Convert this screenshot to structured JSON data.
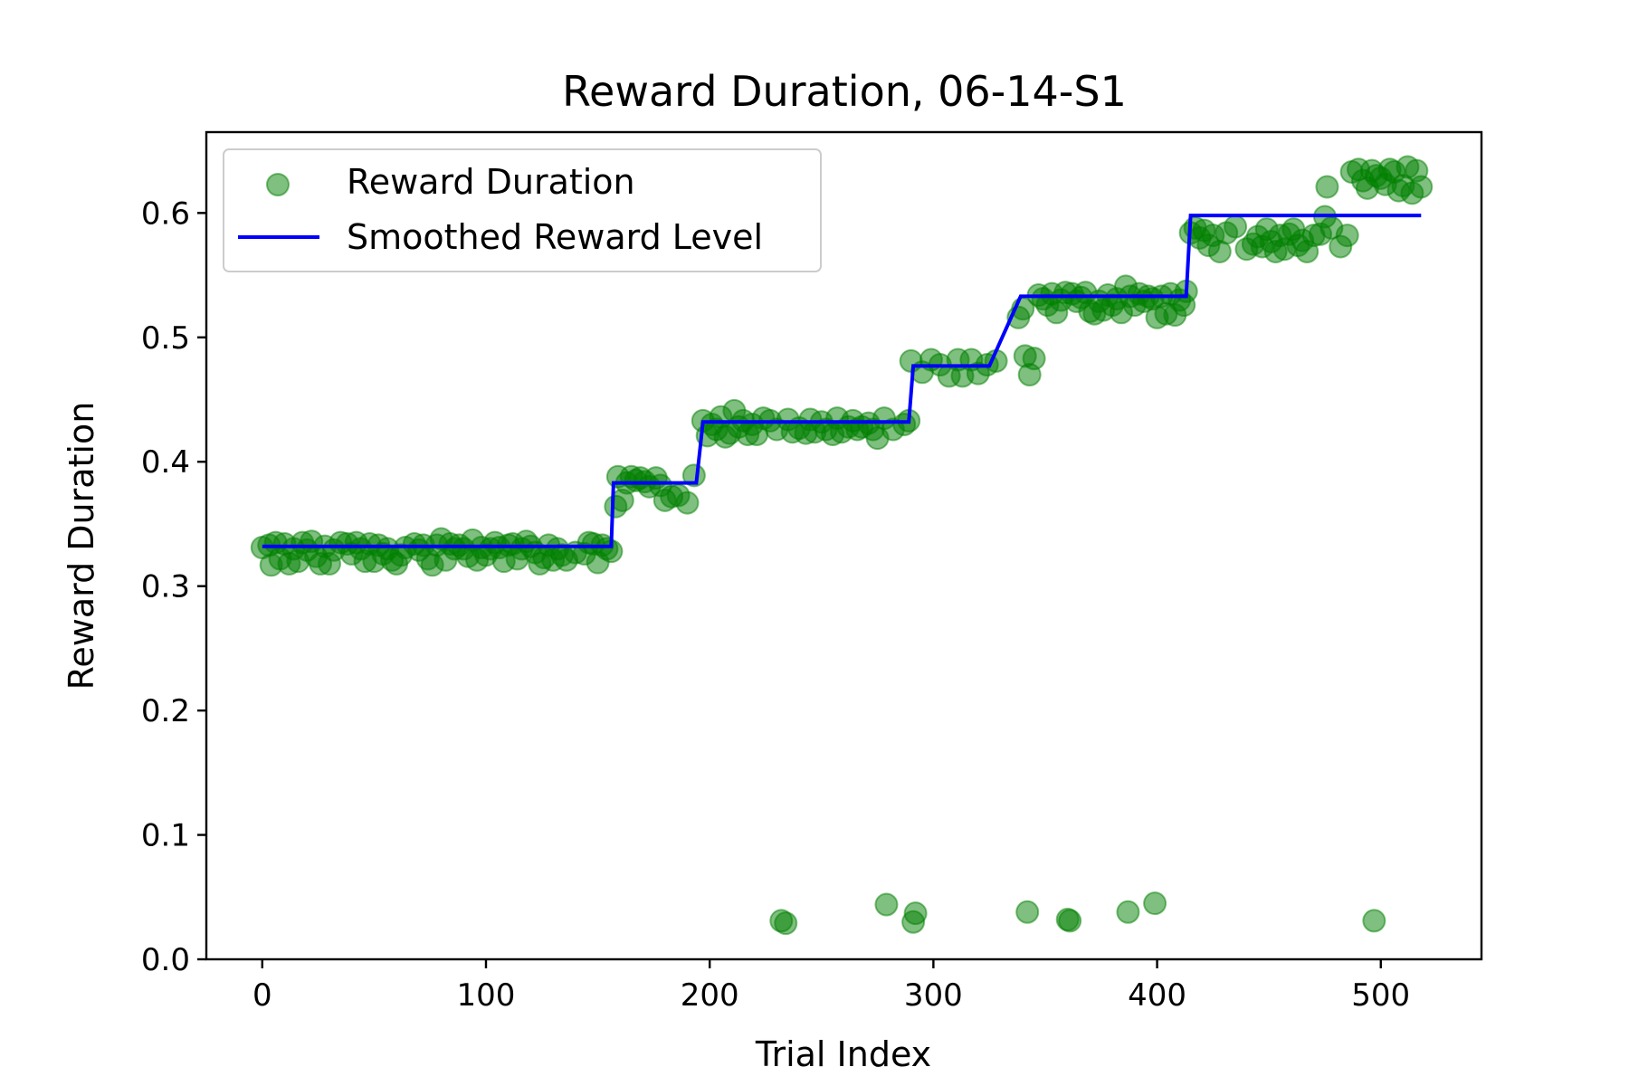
{
  "chart_data": {
    "type": "scatter",
    "title": "Reward Duration, 06-14-S1",
    "xlabel": "Trial Index",
    "ylabel": "Reward Duration",
    "xlim": [
      -25,
      545
    ],
    "ylim": [
      0.0,
      0.665
    ],
    "grid": false,
    "legend_position": "top-left",
    "x_ticks": [
      0,
      100,
      200,
      300,
      400,
      500
    ],
    "x_tick_labels": [
      "0",
      "100",
      "200",
      "300",
      "400",
      "500"
    ],
    "y_ticks": [
      0.0,
      0.1,
      0.2,
      0.3,
      0.4,
      0.5,
      0.6
    ],
    "y_tick_labels": [
      "0.0",
      "0.1",
      "0.2",
      "0.3",
      "0.4",
      "0.5",
      "0.6"
    ],
    "series": [
      {
        "name": "Reward Duration",
        "kind": "scatter",
        "color": "#008000",
        "opacity": 0.5,
        "points": [
          [
            0,
            0.331
          ],
          [
            3,
            0.333
          ],
          [
            4,
            0.317
          ],
          [
            6,
            0.335
          ],
          [
            8,
            0.322
          ],
          [
            10,
            0.334
          ],
          [
            12,
            0.318
          ],
          [
            14,
            0.33
          ],
          [
            16,
            0.32
          ],
          [
            18,
            0.335
          ],
          [
            20,
            0.329
          ],
          [
            22,
            0.336
          ],
          [
            24,
            0.324
          ],
          [
            26,
            0.318
          ],
          [
            28,
            0.332
          ],
          [
            30,
            0.318
          ],
          [
            32,
            0.329
          ],
          [
            35,
            0.335
          ],
          [
            38,
            0.334
          ],
          [
            40,
            0.326
          ],
          [
            42,
            0.335
          ],
          [
            44,
            0.33
          ],
          [
            46,
            0.32
          ],
          [
            48,
            0.334
          ],
          [
            50,
            0.32
          ],
          [
            52,
            0.333
          ],
          [
            54,
            0.326
          ],
          [
            56,
            0.33
          ],
          [
            58,
            0.321
          ],
          [
            60,
            0.318
          ],
          [
            62,
            0.325
          ],
          [
            64,
            0.331
          ],
          [
            68,
            0.334
          ],
          [
            70,
            0.329
          ],
          [
            72,
            0.333
          ],
          [
            74,
            0.322
          ],
          [
            76,
            0.317
          ],
          [
            78,
            0.333
          ],
          [
            80,
            0.338
          ],
          [
            82,
            0.321
          ],
          [
            84,
            0.334
          ],
          [
            86,
            0.33
          ],
          [
            88,
            0.333
          ],
          [
            90,
            0.33
          ],
          [
            92,
            0.324
          ],
          [
            94,
            0.337
          ],
          [
            96,
            0.321
          ],
          [
            98,
            0.331
          ],
          [
            100,
            0.325
          ],
          [
            102,
            0.33
          ],
          [
            104,
            0.335
          ],
          [
            106,
            0.331
          ],
          [
            108,
            0.32
          ],
          [
            110,
            0.333
          ],
          [
            112,
            0.334
          ],
          [
            114,
            0.322
          ],
          [
            116,
            0.33
          ],
          [
            118,
            0.336
          ],
          [
            120,
            0.332
          ],
          [
            122,
            0.327
          ],
          [
            124,
            0.318
          ],
          [
            126,
            0.323
          ],
          [
            128,
            0.333
          ],
          [
            130,
            0.321
          ],
          [
            132,
            0.33
          ],
          [
            134,
            0.325
          ],
          [
            136,
            0.321
          ],
          [
            140,
            0.327
          ],
          [
            144,
            0.326
          ],
          [
            146,
            0.335
          ],
          [
            148,
            0.334
          ],
          [
            150,
            0.319
          ],
          [
            152,
            0.333
          ],
          [
            154,
            0.33
          ],
          [
            156,
            0.328
          ],
          [
            158,
            0.364
          ],
          [
            159,
            0.388
          ],
          [
            161,
            0.369
          ],
          [
            163,
            0.383
          ],
          [
            165,
            0.388
          ],
          [
            167,
            0.385
          ],
          [
            169,
            0.387
          ],
          [
            171,
            0.384
          ],
          [
            173,
            0.38
          ],
          [
            176,
            0.387
          ],
          [
            178,
            0.381
          ],
          [
            180,
            0.369
          ],
          [
            183,
            0.372
          ],
          [
            186,
            0.373
          ],
          [
            190,
            0.367
          ],
          [
            193,
            0.389
          ],
          [
            197,
            0.433
          ],
          [
            199,
            0.421
          ],
          [
            201,
            0.43
          ],
          [
            203,
            0.426
          ],
          [
            205,
            0.436
          ],
          [
            207,
            0.42
          ],
          [
            209,
            0.423
          ],
          [
            211,
            0.441
          ],
          [
            213,
            0.428
          ],
          [
            215,
            0.433
          ],
          [
            217,
            0.422
          ],
          [
            219,
            0.43
          ],
          [
            221,
            0.422
          ],
          [
            224,
            0.435
          ],
          [
            227,
            0.433
          ],
          [
            230,
            0.426
          ],
          [
            232,
            0.031
          ],
          [
            234,
            0.029
          ],
          [
            235,
            0.434
          ],
          [
            237,
            0.424
          ],
          [
            240,
            0.427
          ],
          [
            243,
            0.423
          ],
          [
            245,
            0.434
          ],
          [
            247,
            0.424
          ],
          [
            250,
            0.432
          ],
          [
            252,
            0.426
          ],
          [
            255,
            0.422
          ],
          [
            257,
            0.435
          ],
          [
            259,
            0.424
          ],
          [
            262,
            0.428
          ],
          [
            264,
            0.433
          ],
          [
            266,
            0.426
          ],
          [
            268,
            0.428
          ],
          [
            271,
            0.431
          ],
          [
            273,
            0.426
          ],
          [
            275,
            0.419
          ],
          [
            278,
            0.435
          ],
          [
            279,
            0.044
          ],
          [
            282,
            0.426
          ],
          [
            287,
            0.43
          ],
          [
            289,
            0.433
          ],
          [
            290,
            0.481
          ],
          [
            291,
            0.03
          ],
          [
            292,
            0.037
          ],
          [
            295,
            0.472
          ],
          [
            299,
            0.482
          ],
          [
            303,
            0.478
          ],
          [
            307,
            0.469
          ],
          [
            311,
            0.482
          ],
          [
            313,
            0.469
          ],
          [
            317,
            0.482
          ],
          [
            320,
            0.471
          ],
          [
            324,
            0.478
          ],
          [
            328,
            0.481
          ],
          [
            338,
            0.516
          ],
          [
            340,
            0.523
          ],
          [
            341,
            0.485
          ],
          [
            342,
            0.038
          ],
          [
            343,
            0.47
          ],
          [
            345,
            0.483
          ],
          [
            347,
            0.534
          ],
          [
            349,
            0.531
          ],
          [
            351,
            0.526
          ],
          [
            353,
            0.535
          ],
          [
            355,
            0.52
          ],
          [
            357,
            0.53
          ],
          [
            359,
            0.536
          ],
          [
            360,
            0.032
          ],
          [
            361,
            0.031
          ],
          [
            362,
            0.535
          ],
          [
            364,
            0.529
          ],
          [
            366,
            0.532
          ],
          [
            368,
            0.536
          ],
          [
            370,
            0.521
          ],
          [
            372,
            0.519
          ],
          [
            374,
            0.529
          ],
          [
            376,
            0.522
          ],
          [
            378,
            0.534
          ],
          [
            380,
            0.526
          ],
          [
            382,
            0.531
          ],
          [
            384,
            0.52
          ],
          [
            386,
            0.541
          ],
          [
            387,
            0.038
          ],
          [
            388,
            0.533
          ],
          [
            390,
            0.526
          ],
          [
            392,
            0.535
          ],
          [
            394,
            0.529
          ],
          [
            396,
            0.533
          ],
          [
            398,
            0.531
          ],
          [
            399,
            0.045
          ],
          [
            400,
            0.516
          ],
          [
            402,
            0.533
          ],
          [
            404,
            0.519
          ],
          [
            406,
            0.535
          ],
          [
            408,
            0.518
          ],
          [
            410,
            0.53
          ],
          [
            412,
            0.526
          ],
          [
            413,
            0.537
          ],
          [
            415,
            0.584
          ],
          [
            417,
            0.588
          ],
          [
            419,
            0.58
          ],
          [
            421,
            0.586
          ],
          [
            423,
            0.574
          ],
          [
            425,
            0.582
          ],
          [
            428,
            0.569
          ],
          [
            431,
            0.584
          ],
          [
            435,
            0.589
          ],
          [
            440,
            0.571
          ],
          [
            443,
            0.575
          ],
          [
            445,
            0.581
          ],
          [
            447,
            0.573
          ],
          [
            449,
            0.587
          ],
          [
            451,
            0.577
          ],
          [
            453,
            0.569
          ],
          [
            455,
            0.582
          ],
          [
            457,
            0.571
          ],
          [
            459,
            0.583
          ],
          [
            461,
            0.587
          ],
          [
            463,
            0.574
          ],
          [
            465,
            0.578
          ],
          [
            467,
            0.569
          ],
          [
            470,
            0.582
          ],
          [
            473,
            0.583
          ],
          [
            475,
            0.597
          ],
          [
            476,
            0.621
          ],
          [
            478,
            0.588
          ],
          [
            482,
            0.573
          ],
          [
            485,
            0.582
          ],
          [
            487,
            0.633
          ],
          [
            490,
            0.635
          ],
          [
            492,
            0.626
          ],
          [
            494,
            0.62
          ],
          [
            496,
            0.634
          ],
          [
            497,
            0.031
          ],
          [
            498,
            0.63
          ],
          [
            500,
            0.628
          ],
          [
            502,
            0.623
          ],
          [
            504,
            0.635
          ],
          [
            506,
            0.633
          ],
          [
            508,
            0.618
          ],
          [
            510,
            0.622
          ],
          [
            512,
            0.637
          ],
          [
            514,
            0.616
          ],
          [
            516,
            0.634
          ],
          [
            518,
            0.621
          ]
        ]
      },
      {
        "name": "Smoothed Reward Level",
        "kind": "line",
        "color": "#0000ff",
        "points": [
          [
            0,
            0.332
          ],
          [
            156,
            0.332
          ],
          [
            157,
            0.383
          ],
          [
            194,
            0.383
          ],
          [
            197,
            0.432
          ],
          [
            289,
            0.432
          ],
          [
            291,
            0.477
          ],
          [
            325,
            0.477
          ],
          [
            339,
            0.533
          ],
          [
            413,
            0.533
          ],
          [
            415,
            0.598
          ],
          [
            518,
            0.598
          ]
        ]
      }
    ]
  }
}
